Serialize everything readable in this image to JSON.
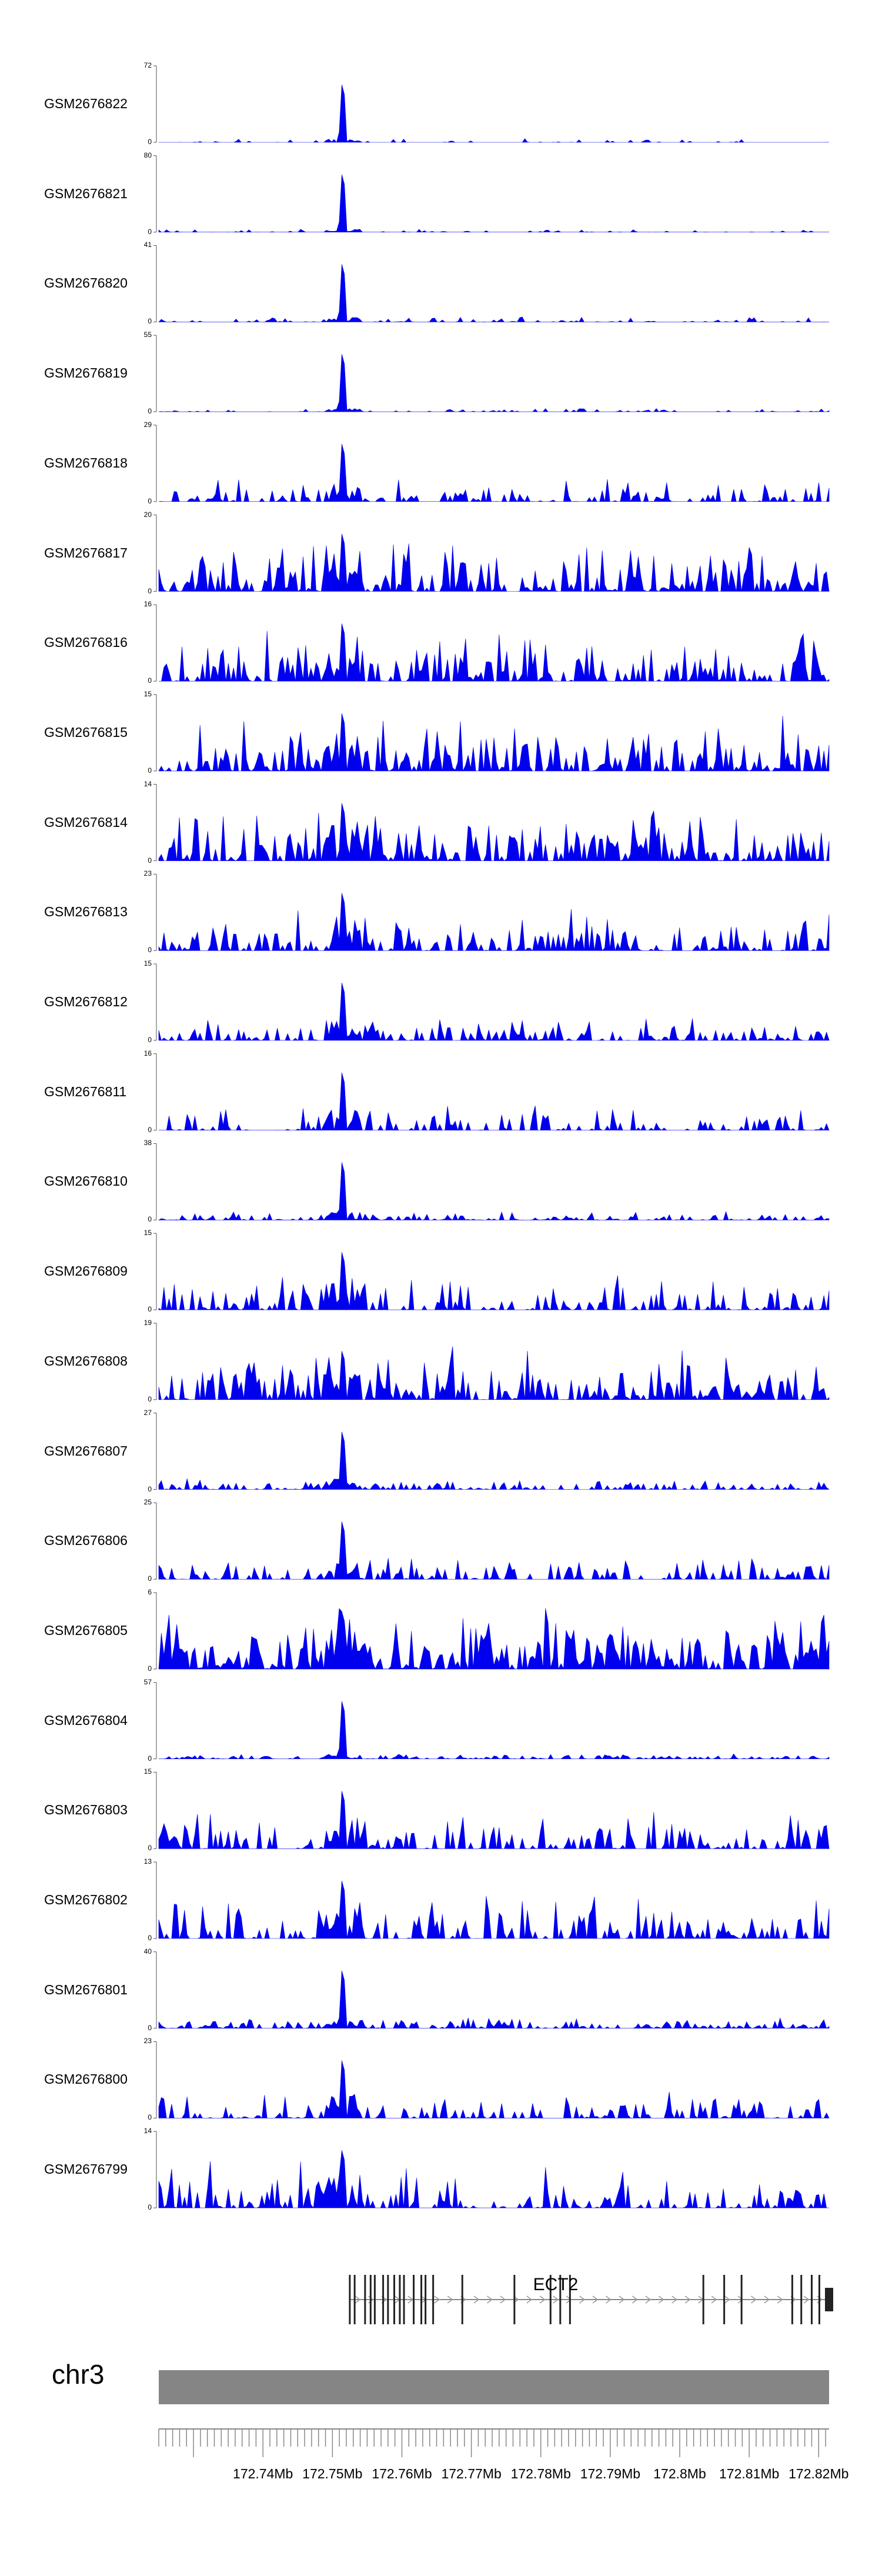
{
  "chart_data": {
    "type": "area",
    "title": "",
    "chromosome": "chr3",
    "x_range_mb": [
      172.725,
      172.8215
    ],
    "x_ticks": [
      {
        "value": 172.74,
        "label": "172.74Mb"
      },
      {
        "value": 172.75,
        "label": "172.75Mb"
      },
      {
        "value": 172.76,
        "label": "172.76Mb"
      },
      {
        "value": 172.77,
        "label": "172.77Mb"
      },
      {
        "value": 172.78,
        "label": "172.78Mb"
      },
      {
        "value": 172.79,
        "label": "172.79Mb"
      },
      {
        "value": 172.8,
        "label": "172.8Mb"
      },
      {
        "value": 172.81,
        "label": "172.81Mb"
      },
      {
        "value": 172.82,
        "label": "172.82Mb"
      }
    ],
    "peak_position_mb": 172.7515,
    "fill_color": "#0000ee",
    "series": [
      {
        "name": "GSM2676822",
        "ymax": "72",
        "ymin": "0",
        "peak": 72,
        "base": 4,
        "density": 0.15,
        "seed": 22
      },
      {
        "name": "GSM2676821",
        "ymax": "80",
        "ymin": "0",
        "peak": 80,
        "base": 4,
        "density": 0.2,
        "seed": 21
      },
      {
        "name": "GSM2676820",
        "ymax": "41",
        "ymin": "0",
        "peak": 41,
        "base": 3,
        "density": 0.4,
        "seed": 20
      },
      {
        "name": "GSM2676819",
        "ymax": "55",
        "ymin": "0",
        "peak": 55,
        "base": 3,
        "density": 0.3,
        "seed": 19
      },
      {
        "name": "GSM2676818",
        "ymax": "29",
        "ymin": "0",
        "peak": 29,
        "base": 9,
        "density": 0.55,
        "seed": 18
      },
      {
        "name": "GSM2676817",
        "ymax": "20",
        "ymin": "0",
        "peak": 20,
        "base": 15,
        "density": 0.8,
        "seed": 17
      },
      {
        "name": "GSM2676816",
        "ymax": "16",
        "ymin": "0",
        "peak": 16,
        "base": 12,
        "density": 0.7,
        "seed": 16
      },
      {
        "name": "GSM2676815",
        "ymax": "15",
        "ymin": "0",
        "peak": 15,
        "base": 11,
        "density": 0.8,
        "seed": 15
      },
      {
        "name": "GSM2676814",
        "ymax": "14",
        "ymin": "0",
        "peak": 14,
        "base": 11,
        "density": 0.8,
        "seed": 14
      },
      {
        "name": "GSM2676813",
        "ymax": "23",
        "ymin": "0",
        "peak": 23,
        "base": 13,
        "density": 0.7,
        "seed": 13
      },
      {
        "name": "GSM2676812",
        "ymax": "15",
        "ymin": "0",
        "peak": 15,
        "base": 5,
        "density": 0.7,
        "seed": 12
      },
      {
        "name": "GSM2676811",
        "ymax": "16",
        "ymin": "0",
        "peak": 16,
        "base": 6,
        "density": 0.5,
        "seed": 11
      },
      {
        "name": "GSM2676810",
        "ymax": "38",
        "ymin": "0",
        "peak": 38,
        "base": 5,
        "density": 0.6,
        "seed": 10
      },
      {
        "name": "GSM2676809",
        "ymax": "15",
        "ymin": "0",
        "peak": 15,
        "base": 8,
        "density": 0.55,
        "seed": 9
      },
      {
        "name": "GSM2676808",
        "ymax": "19",
        "ymin": "0",
        "peak": 16,
        "base": 14,
        "density": 0.75,
        "seed": 8
      },
      {
        "name": "GSM2676807",
        "ymax": "27",
        "ymin": "0",
        "peak": 27,
        "base": 4,
        "density": 0.7,
        "seed": 7
      },
      {
        "name": "GSM2676806",
        "ymax": "25",
        "ymin": "0",
        "peak": 25,
        "base": 8,
        "density": 0.6,
        "seed": 6
      },
      {
        "name": "GSM2676805",
        "ymax": "6",
        "ymin": "0",
        "peak": 6,
        "base": 5,
        "density": 0.95,
        "seed": 5
      },
      {
        "name": "GSM2676804",
        "ymax": "57",
        "ymin": "0",
        "peak": 57,
        "base": 5,
        "density": 0.65,
        "seed": 4
      },
      {
        "name": "GSM2676803",
        "ymax": "15",
        "ymin": "0",
        "peak": 15,
        "base": 8,
        "density": 0.6,
        "seed": 3
      },
      {
        "name": "GSM2676802",
        "ymax": "13",
        "ymin": "0",
        "peak": 13,
        "base": 8,
        "density": 0.6,
        "seed": 2
      },
      {
        "name": "GSM2676801",
        "ymax": "40",
        "ymin": "0",
        "peak": 40,
        "base": 6,
        "density": 0.75,
        "seed": 1
      },
      {
        "name": "GSM2676800",
        "ymax": "23",
        "ymin": "0",
        "peak": 23,
        "base": 9,
        "density": 0.6,
        "seed": 100
      },
      {
        "name": "GSM2676799",
        "ymax": "14",
        "ymin": "0",
        "peak": 14,
        "base": 9,
        "density": 0.6,
        "seed": 99
      }
    ],
    "gene": {
      "name": "ECT2",
      "start_mb": 172.7525,
      "end_mb": 172.8215,
      "strand": "+",
      "exons_mb": [
        172.7525,
        172.7532,
        172.7547,
        172.7555,
        172.7561,
        172.7573,
        172.758,
        172.7589,
        172.7597,
        172.7603,
        172.7617,
        172.7628,
        172.7634,
        172.7645,
        172.7687,
        172.7762,
        172.7814,
        172.7828,
        172.7842,
        172.8034,
        172.8064,
        172.8089,
        172.8162,
        172.8175,
        172.819,
        172.8201,
        172.8215
      ]
    }
  }
}
